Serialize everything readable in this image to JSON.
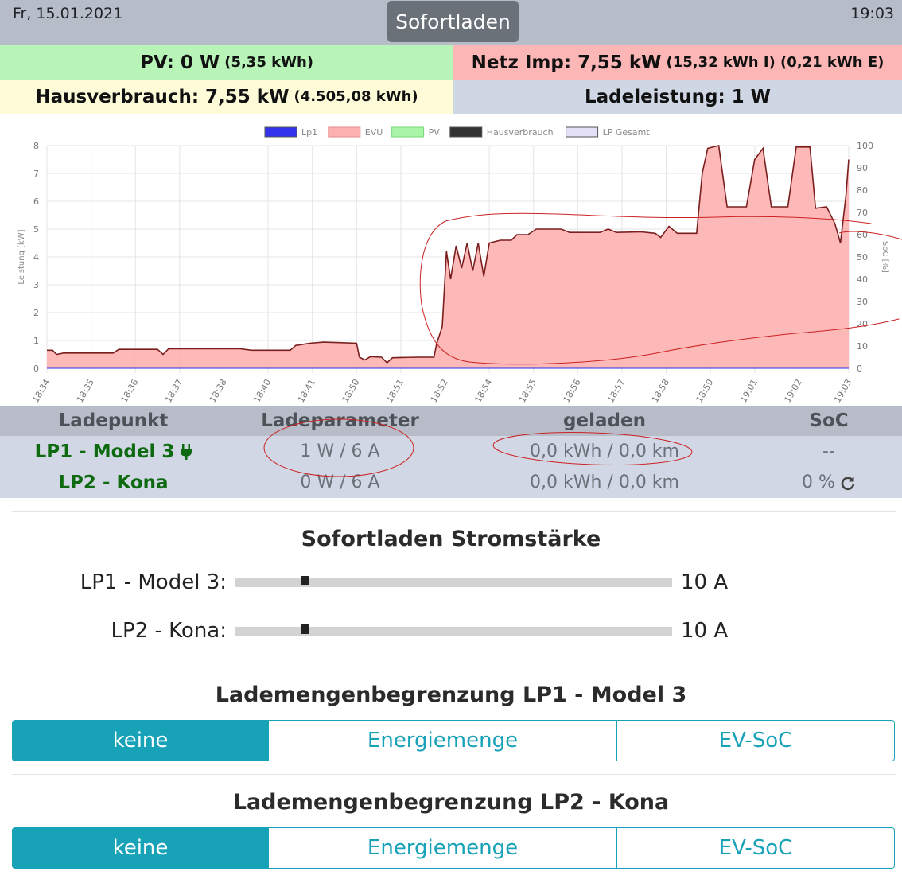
{
  "header": {
    "date": "Fr, 15.01.2021",
    "mode": "Sofortladen",
    "time": "19:03"
  },
  "summary": {
    "pv_label": "PV: 0 W",
    "pv_detail": "(5,35 kWh)",
    "netz_label": "Netz Imp: 7,55 kW",
    "netz_detail": "(15,32 kWh I) (0,21 kWh E)",
    "haus_label": "Hausverbrauch: 7,55 kW",
    "haus_detail": "(4.505,08 kWh)",
    "lade_label": "Ladeleistung: 1 W"
  },
  "chart_data": {
    "type": "area",
    "legend": [
      "Lp1",
      "EVU",
      "PV",
      "Hausverbrauch",
      "LP Gesamt"
    ],
    "legend_colors": [
      "#3333ee",
      "#fdb0b0",
      "#a8f5a8",
      "#333333",
      "#e3e0f8"
    ],
    "ylabel": "Leistung [kW]",
    "y2label": "SoC [%]",
    "ylim": [
      0,
      8
    ],
    "y2lim": [
      0,
      100
    ],
    "yticks": [
      0,
      1,
      2,
      3,
      4,
      5,
      6,
      7,
      8
    ],
    "y2ticks": [
      0,
      10,
      20,
      30,
      40,
      50,
      60,
      70,
      80,
      90,
      100
    ],
    "xlim": [
      0,
      29
    ],
    "xtick_labels": [
      "18:34",
      "18:35",
      "18:36",
      "18:37",
      "18:38",
      "18:40",
      "18:41",
      "18:50",
      "18:51",
      "18:52",
      "18:54",
      "18:55",
      "18:56",
      "18:57",
      "18:58",
      "18:59",
      "19:01",
      "19:02",
      "19:03"
    ],
    "xtick_positions": [
      0,
      1.6,
      3.2,
      4.8,
      6.4,
      8.0,
      9.6,
      11.2,
      12.8,
      14.4,
      16.0,
      17.6,
      19.2,
      20.8,
      22.4,
      24.0,
      25.6,
      27.2,
      29.0
    ],
    "evu": [
      [
        0,
        0.65
      ],
      [
        0.2,
        0.65
      ],
      [
        0.35,
        0.5
      ],
      [
        0.6,
        0.55
      ],
      [
        2.4,
        0.55
      ],
      [
        2.6,
        0.68
      ],
      [
        4.0,
        0.68
      ],
      [
        4.2,
        0.5
      ],
      [
        4.4,
        0.7
      ],
      [
        6.3,
        0.7
      ],
      [
        7.0,
        0.7
      ],
      [
        7.4,
        0.65
      ],
      [
        8.8,
        0.65
      ],
      [
        9.0,
        0.82
      ],
      [
        9.5,
        0.9
      ],
      [
        10.0,
        0.94
      ],
      [
        10.7,
        0.92
      ],
      [
        11.2,
        0.9
      ],
      [
        11.3,
        0.4
      ],
      [
        11.5,
        0.3
      ],
      [
        11.7,
        0.42
      ],
      [
        12.1,
        0.4
      ],
      [
        12.3,
        0.2
      ],
      [
        12.5,
        0.38
      ],
      [
        13.4,
        0.4
      ],
      [
        14.0,
        0.4
      ],
      [
        14.1,
        0.9
      ],
      [
        14.3,
        1.5
      ],
      [
        14.45,
        4.2
      ],
      [
        14.6,
        3.2
      ],
      [
        14.8,
        4.4
      ],
      [
        15.0,
        3.6
      ],
      [
        15.2,
        4.5
      ],
      [
        15.4,
        3.5
      ],
      [
        15.6,
        4.5
      ],
      [
        15.8,
        3.3
      ],
      [
        16.0,
        4.5
      ],
      [
        16.4,
        4.6
      ],
      [
        16.8,
        4.6
      ],
      [
        17.0,
        4.8
      ],
      [
        17.4,
        4.8
      ],
      [
        17.7,
        5.0
      ],
      [
        18.6,
        5.0
      ],
      [
        18.9,
        4.88
      ],
      [
        20.0,
        4.88
      ],
      [
        20.3,
        5.0
      ],
      [
        20.6,
        4.88
      ],
      [
        21.5,
        4.9
      ],
      [
        22.0,
        4.85
      ],
      [
        22.2,
        4.7
      ],
      [
        22.5,
        5.1
      ],
      [
        22.8,
        4.85
      ],
      [
        23.5,
        4.85
      ],
      [
        23.7,
        7.0
      ],
      [
        23.9,
        7.9
      ],
      [
        24.3,
        8.0
      ],
      [
        24.6,
        5.8
      ],
      [
        25.3,
        5.8
      ],
      [
        25.6,
        7.5
      ],
      [
        25.9,
        7.9
      ],
      [
        26.2,
        5.8
      ],
      [
        26.8,
        5.8
      ],
      [
        27.1,
        7.95
      ],
      [
        27.6,
        7.95
      ],
      [
        27.8,
        5.75
      ],
      [
        28.2,
        5.8
      ],
      [
        28.5,
        5.2
      ],
      [
        28.7,
        4.5
      ],
      [
        28.9,
        6.2
      ],
      [
        29.0,
        7.5
      ]
    ]
  },
  "table": {
    "headers": [
      "Ladepunkt",
      "Ladeparameter",
      "geladen",
      "SoC"
    ],
    "rows": [
      {
        "name": "LP1 - Model 3",
        "param": "1 W / 6 A",
        "geladen": "0,0 kWh / 0,0 km",
        "soc": "--"
      },
      {
        "name": "LP2 - Kona",
        "param": "0 W / 6 A",
        "geladen": "0,0 kWh / 0,0 km",
        "soc": "0 %"
      }
    ]
  },
  "current": {
    "title": "Sofortladen Stromstärke",
    "lp1_label": "LP1 - Model 3:",
    "lp1_value": "10 A",
    "lp1_fraction": 0.16,
    "lp2_label": "LP2 - Kona:",
    "lp2_value": "10 A",
    "lp2_fraction": 0.16
  },
  "limit_lp1": {
    "title": "Lademengenbegrenzung LP1 - Model 3",
    "options": [
      "keine",
      "Energiemenge",
      "EV-SoC"
    ],
    "selected": "keine"
  },
  "limit_lp2": {
    "title": "Lademengenbegrenzung LP2 - Kona",
    "options": [
      "keine",
      "Energiemenge",
      "EV-SoC"
    ],
    "selected": "keine"
  }
}
